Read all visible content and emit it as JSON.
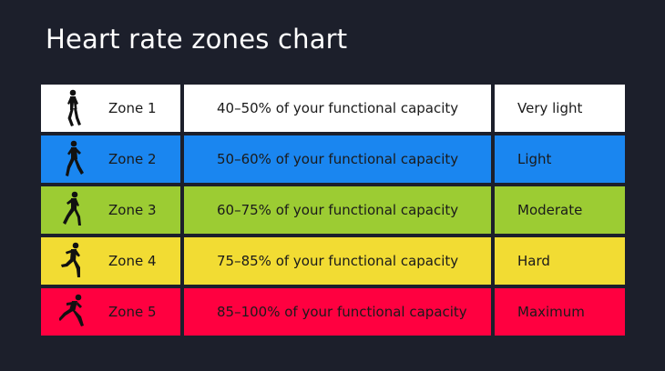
{
  "title": "Heart rate zones chart",
  "chart_data": {
    "type": "table",
    "title": "Heart rate zones chart",
    "rows": [
      {
        "zone": "Zone 1",
        "range": "40–50% of your functional capacity",
        "intensity": "Very light",
        "low": 40,
        "high": 50,
        "color": "#ffffff",
        "text_color": "#1a1a1a",
        "icon": "walking-icon"
      },
      {
        "zone": "Zone 2",
        "range": "50–60% of your functional capacity",
        "intensity": "Light",
        "low": 50,
        "high": 60,
        "color": "#1a86f0",
        "text_color": "#1a1a1a",
        "icon": "brisk-walking-icon"
      },
      {
        "zone": "Zone 3",
        "range": "60–75% of your functional capacity",
        "intensity": "Moderate",
        "low": 60,
        "high": 75,
        "color": "#9ccc33",
        "text_color": "#1a1a1a",
        "icon": "jogging-icon"
      },
      {
        "zone": "Zone 4",
        "range": "75–85% of your functional capacity",
        "intensity": "Hard",
        "low": 75,
        "high": 85,
        "color": "#f2dc33",
        "text_color": "#1a1a1a",
        "icon": "running-icon"
      },
      {
        "zone": "Zone 5",
        "range": "85–100% of your functional capacity",
        "intensity": "Maximum",
        "low": 85,
        "high": 100,
        "color": "#ff0040",
        "text_color": "#1a1a1a",
        "icon": "sprinting-icon"
      }
    ]
  }
}
